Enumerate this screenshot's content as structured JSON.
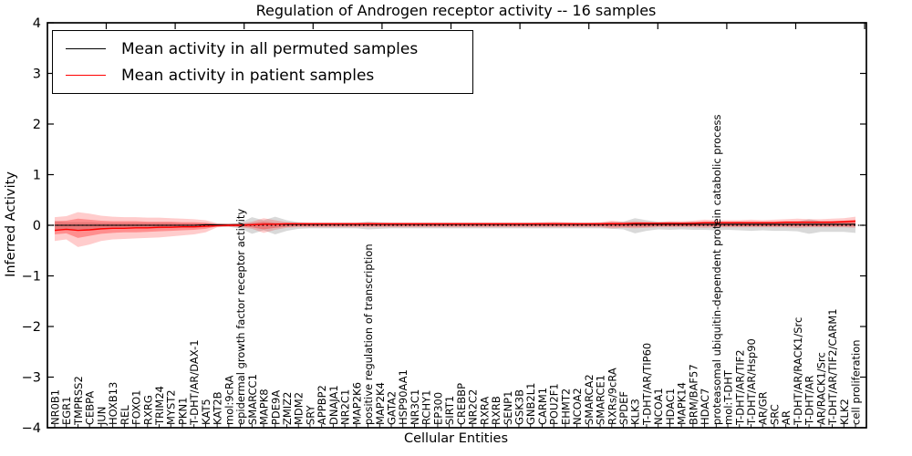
{
  "chart_data": {
    "type": "line",
    "title": "Regulation of Androgen receptor activity -- 16 samples",
    "xlabel": "Cellular Entities",
    "ylabel": "Inferred Activity",
    "ylim": [
      -4,
      4
    ],
    "yticks": [
      4,
      3,
      2,
      1,
      0,
      -1,
      -2,
      -3,
      -4
    ],
    "grid": false,
    "legend_position": "upper left",
    "zero_line": {
      "style": "dotted",
      "color": "#000000"
    },
    "categories": [
      "NR0B1",
      "EGR1",
      "TMPRSS2",
      "CEBPA",
      "JUN",
      "HOXB13",
      "REL",
      "FOXO1",
      "RXRG",
      "TRIM24",
      "MYST2",
      "PKN1",
      "T-DHT/AR/DAX-1",
      "KAT5",
      "KAT2B",
      "mol:9cRA",
      "epidermal growth factor receptor activity",
      "SMARCC1",
      "MAPK8",
      "PDE9A",
      "ZMIZ2",
      "MDM2",
      "SRY",
      "APPBP2",
      "DNAJA1",
      "NR2C1",
      "MAP2K6",
      "positive regulation of transcription",
      "MAP2K4",
      "GATA2",
      "HSP90AA1",
      "NR3C1",
      "RCHY1",
      "EP300",
      "SIRT1",
      "CREBBP",
      "NR2C2",
      "RXRA",
      "RXRB",
      "SENP1",
      "GSK3B",
      "GNB2L1",
      "CARM1",
      "POU2F1",
      "EHMT2",
      "NCOA2",
      "SMARCA2",
      "SMARCE1",
      "RXRs/9cRA",
      "SPDEF",
      "KLK3",
      "T-DHT/AR/TIP60",
      "NCOA1",
      "HDAC1",
      "MAPK14",
      "BRM/BAF57",
      "HDAC7",
      "proteasomal ubiquitin-dependent protein catabolic process",
      "mol:T-DHT",
      "T-DHT/AR/TIF2",
      "T-DHT/AR/Hsp90",
      "AR/GR",
      "SRC",
      "AR",
      "T-DHT/AR/RACK1/Src",
      "T-DHT/AR",
      "AR/RACK1/Src",
      "T-DHT/AR/TIF2/CARM1",
      "KLK2",
      "cell proliferation"
    ],
    "series": [
      {
        "name": "Mean activity in all permuted samples",
        "color": "#000000",
        "values": [
          0,
          0,
          0,
          0,
          0,
          0,
          0,
          0,
          0,
          0,
          0,
          0,
          0,
          0.01,
          0.01,
          0.01,
          0.01,
          0.01,
          0.02,
          0.02,
          0.02,
          0.02,
          0.02,
          0.02,
          0.02,
          0.02,
          0.02,
          0.02,
          0.02,
          0.02,
          0.02,
          0.02,
          0.02,
          0.02,
          0.02,
          0.02,
          0.02,
          0.02,
          0.02,
          0.02,
          0.02,
          0.02,
          0.02,
          0.02,
          0.02,
          0.02,
          0.02,
          0.02,
          0.02,
          0.02,
          0.02,
          0.02,
          0.02,
          0.02,
          0.02,
          0.02,
          0.02,
          0.02,
          0.02,
          0.02,
          0.02,
          0.02,
          0.02,
          0.02,
          0.02,
          0.02,
          0.02,
          0.02,
          0.02,
          0.02
        ]
      },
      {
        "name": "Mean activity in patient samples",
        "color": "#ff0000",
        "values": [
          -0.1,
          -0.08,
          -0.1,
          -0.09,
          -0.07,
          -0.06,
          -0.06,
          -0.05,
          -0.05,
          -0.04,
          -0.04,
          -0.03,
          -0.03,
          -0.02,
          -0.01,
          0,
          0,
          0.01,
          0.02,
          0.02,
          0.03,
          0.03,
          0.03,
          0.03,
          0.03,
          0.03,
          0.03,
          0.03,
          0.03,
          0.03,
          0.03,
          0.03,
          0.03,
          0.03,
          0.03,
          0.03,
          0.03,
          0.03,
          0.03,
          0.03,
          0.03,
          0.03,
          0.03,
          0.03,
          0.03,
          0.03,
          0.03,
          0.03,
          0.03,
          0.03,
          0.04,
          0.04,
          0.04,
          0.04,
          0.04,
          0.04,
          0.05,
          0.05,
          0.05,
          0.05,
          0.05,
          0.05,
          0.05,
          0.06,
          0.06,
          0.06,
          0.06,
          0.06,
          0.07,
          0.08
        ]
      }
    ],
    "bands": [
      {
        "name": "permuted-samples-range",
        "color": "#808080",
        "opacity": 0.3,
        "upper": [
          0.08,
          0.06,
          0.06,
          0.06,
          0.05,
          0.05,
          0.05,
          0.05,
          0.05,
          0.05,
          0.05,
          0.04,
          0.04,
          0.04,
          0.03,
          0.03,
          0.05,
          0.16,
          0.1,
          0.17,
          0.1,
          0.06,
          0.05,
          0.05,
          0.05,
          0.05,
          0.05,
          0.07,
          0.06,
          0.05,
          0.05,
          0.05,
          0.05,
          0.05,
          0.05,
          0.05,
          0.05,
          0.05,
          0.05,
          0.05,
          0.05,
          0.05,
          0.05,
          0.05,
          0.05,
          0.05,
          0.05,
          0.05,
          0.06,
          0.07,
          0.14,
          0.1,
          0.07,
          0.07,
          0.06,
          0.07,
          0.06,
          0.07,
          0.06,
          0.07,
          0.06,
          0.06,
          0.06,
          0.06,
          0.07,
          0.12,
          0.08,
          0.07,
          0.06,
          0.05
        ],
        "lower": [
          -0.12,
          -0.08,
          -0.08,
          -0.08,
          -0.07,
          -0.06,
          -0.06,
          -0.06,
          -0.06,
          -0.06,
          -0.05,
          -0.05,
          -0.05,
          -0.04,
          -0.03,
          -0.03,
          -0.06,
          -0.17,
          -0.1,
          -0.18,
          -0.11,
          -0.07,
          -0.06,
          -0.06,
          -0.06,
          -0.06,
          -0.06,
          -0.08,
          -0.07,
          -0.06,
          -0.06,
          -0.06,
          -0.06,
          -0.06,
          -0.06,
          -0.06,
          -0.06,
          -0.06,
          -0.06,
          -0.06,
          -0.06,
          -0.06,
          -0.06,
          -0.06,
          -0.06,
          -0.06,
          -0.06,
          -0.06,
          -0.07,
          -0.08,
          -0.16,
          -0.11,
          -0.08,
          -0.09,
          -0.08,
          -0.09,
          -0.09,
          -0.1,
          -0.09,
          -0.1,
          -0.11,
          -0.1,
          -0.11,
          -0.11,
          -0.12,
          -0.17,
          -0.13,
          -0.13,
          -0.13,
          -0.15
        ]
      },
      {
        "name": "patient-samples-range-outer",
        "color": "#ff0000",
        "opacity": 0.2,
        "upper": [
          0.16,
          0.18,
          0.26,
          0.23,
          0.19,
          0.17,
          0.16,
          0.16,
          0.15,
          0.15,
          0.14,
          0.13,
          0.12,
          0.1,
          0.04,
          0.03,
          0.04,
          0.07,
          0.14,
          0.1,
          0.06,
          0.05,
          0.05,
          0.05,
          0.05,
          0.05,
          0.05,
          0.06,
          0.05,
          0.05,
          0.05,
          0.05,
          0.05,
          0.05,
          0.05,
          0.05,
          0.05,
          0.05,
          0.05,
          0.05,
          0.05,
          0.05,
          0.06,
          0.07,
          0.06,
          0.05,
          0.05,
          0.06,
          0.09,
          0.07,
          0.08,
          0.07,
          0.06,
          0.08,
          0.08,
          0.09,
          0.11,
          0.1,
          0.1,
          0.1,
          0.11,
          0.1,
          0.11,
          0.12,
          0.13,
          0.12,
          0.12,
          0.13,
          0.14,
          0.17
        ],
        "lower": [
          -0.31,
          -0.28,
          -0.43,
          -0.38,
          -0.31,
          -0.28,
          -0.27,
          -0.26,
          -0.25,
          -0.24,
          -0.22,
          -0.2,
          -0.18,
          -0.14,
          -0.04,
          -0.03,
          -0.04,
          -0.07,
          -0.15,
          -0.09,
          -0.05,
          -0.04,
          -0.04,
          -0.04,
          -0.04,
          -0.04,
          -0.04,
          -0.04,
          -0.04,
          -0.04,
          -0.04,
          -0.04,
          -0.04,
          -0.04,
          -0.04,
          -0.04,
          -0.04,
          -0.04,
          -0.04,
          -0.04,
          -0.04,
          -0.04,
          -0.04,
          -0.04,
          -0.04,
          -0.04,
          -0.04,
          -0.04,
          -0.06,
          -0.05,
          -0.06,
          -0.05,
          -0.04,
          -0.04,
          -0.04,
          -0.04,
          -0.05,
          -0.04,
          -0.04,
          -0.04,
          -0.04,
          -0.04,
          -0.04,
          -0.04,
          -0.05,
          -0.04,
          -0.04,
          -0.04,
          -0.04,
          -0.05
        ]
      },
      {
        "name": "patient-samples-range-inner",
        "color": "#ff0000",
        "opacity": 0.3,
        "upper": [
          0.08,
          0.09,
          0.13,
          0.11,
          0.09,
          0.08,
          0.08,
          0.08,
          0.07,
          0.07,
          0.07,
          0.06,
          0.06,
          0.05,
          0.02,
          0.02,
          0.02,
          0.04,
          0.07,
          0.05,
          0.04,
          0.04,
          0.04,
          0.04,
          0.04,
          0.04,
          0.04,
          0.04,
          0.04,
          0.04,
          0.04,
          0.04,
          0.04,
          0.04,
          0.04,
          0.04,
          0.04,
          0.04,
          0.04,
          0.04,
          0.04,
          0.04,
          0.04,
          0.04,
          0.04,
          0.04,
          0.04,
          0.04,
          0.06,
          0.05,
          0.05,
          0.05,
          0.04,
          0.05,
          0.05,
          0.06,
          0.07,
          0.07,
          0.07,
          0.07,
          0.07,
          0.07,
          0.07,
          0.08,
          0.08,
          0.08,
          0.08,
          0.09,
          0.09,
          0.11
        ],
        "lower": [
          -0.18,
          -0.16,
          -0.25,
          -0.21,
          -0.17,
          -0.15,
          -0.14,
          -0.14,
          -0.13,
          -0.12,
          -0.11,
          -0.1,
          -0.09,
          -0.07,
          -0.02,
          -0.02,
          -0.02,
          -0.04,
          -0.08,
          -0.05,
          -0.03,
          -0.02,
          -0.02,
          -0.02,
          -0.02,
          -0.02,
          -0.02,
          -0.02,
          -0.02,
          -0.02,
          -0.02,
          -0.02,
          -0.02,
          -0.02,
          -0.02,
          -0.02,
          -0.02,
          -0.02,
          -0.02,
          -0.02,
          -0.02,
          -0.02,
          -0.02,
          -0.02,
          -0.02,
          -0.02,
          -0.02,
          -0.02,
          -0.03,
          -0.03,
          -0.03,
          -0.03,
          -0.02,
          -0.02,
          -0.02,
          -0.02,
          -0.02,
          -0.02,
          -0.02,
          -0.02,
          -0.02,
          -0.02,
          -0.02,
          -0.02,
          -0.02,
          -0.02,
          -0.02,
          -0.02,
          -0.02,
          -0.02
        ]
      }
    ]
  }
}
